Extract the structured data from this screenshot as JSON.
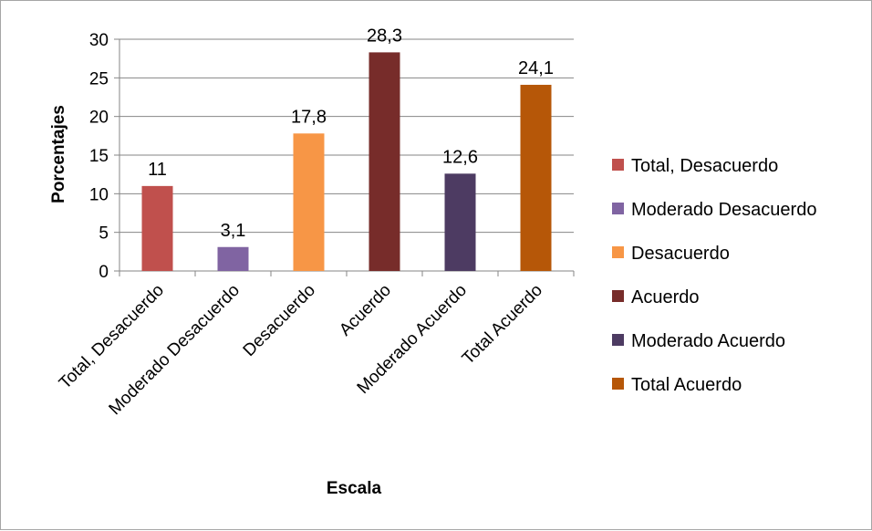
{
  "chart_data": {
    "type": "bar",
    "categories": [
      "Total, Desacuerdo",
      "Moderado Desacuerdo",
      "Desacuerdo",
      "Acuerdo",
      "Moderado Acuerdo",
      "Total Acuerdo"
    ],
    "values": [
      11,
      3.1,
      17.8,
      28.3,
      12.6,
      24.1
    ],
    "value_labels": [
      "11",
      "3,1",
      "17,8",
      "28,3",
      "12,6",
      "24,1"
    ],
    "colors": [
      "#c0504d",
      "#8064a2",
      "#f79646",
      "#772c2a",
      "#4d3b62",
      "#b65708"
    ],
    "title": "",
    "xlabel": "Escala",
    "ylabel": "Porcentajes",
    "ylim": [
      0,
      30
    ],
    "yticks": [
      0,
      5,
      10,
      15,
      20,
      25,
      30
    ],
    "grid": true,
    "legend_position": "right",
    "legend": [
      "Total, Desacuerdo",
      "Moderado Desacuerdo",
      "Desacuerdo",
      "Acuerdo",
      "Moderado Acuerdo",
      "Total Acuerdo"
    ]
  }
}
